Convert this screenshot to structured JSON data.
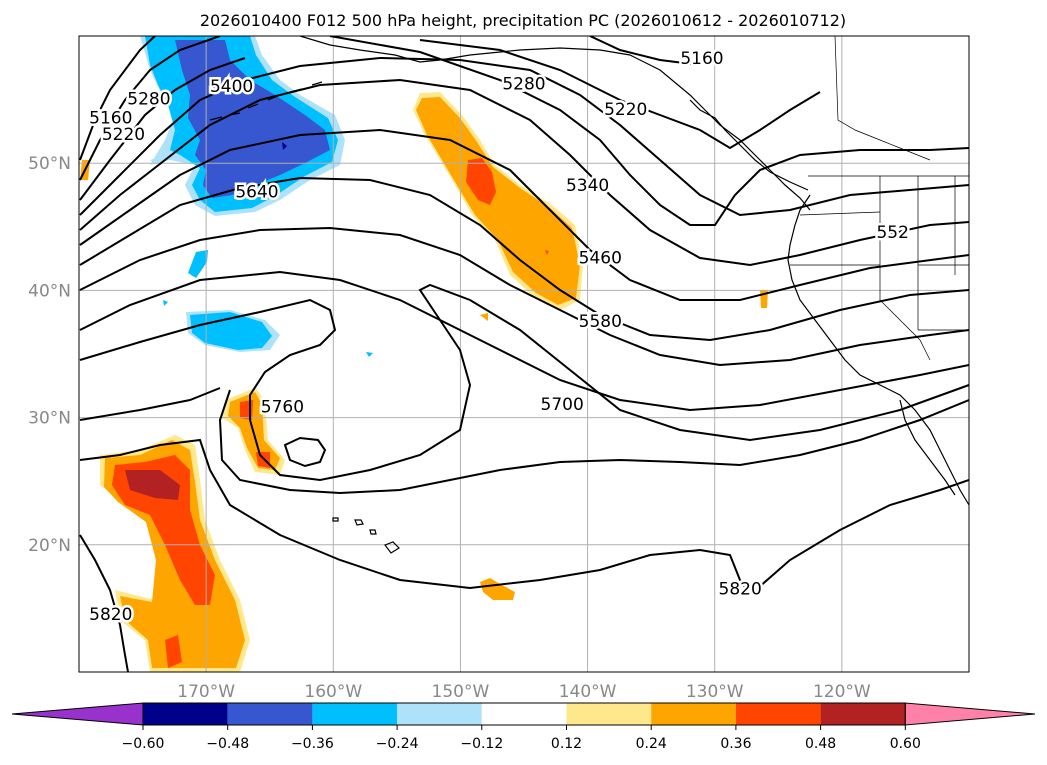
{
  "title": "2026010400 F012 500 hPa height, precipitation PC (2026010612 - 2026010712)",
  "map": {
    "lon_labels": [
      "170°W",
      "160°W",
      "150°W",
      "140°W",
      "130°W",
      "120°W"
    ],
    "lon_values": [
      -170,
      -160,
      -150,
      -140,
      -130,
      -120
    ],
    "lat_labels": [
      "50°N",
      "40°N",
      "30°N",
      "20°N"
    ],
    "lat_values": [
      50,
      40,
      30,
      20
    ],
    "label_color": "#888888",
    "grid": true
  },
  "height_contours": {
    "labels": [
      {
        "text": "5160",
        "lon": -177.5,
        "lat": 53.5
      },
      {
        "text": "5220",
        "lon": -176.5,
        "lat": 52.2
      },
      {
        "text": "5280",
        "lon": -174.5,
        "lat": 55.0
      },
      {
        "text": "5400",
        "lon": -168.0,
        "lat": 56.0
      },
      {
        "text": "5640",
        "lon": -166.0,
        "lat": 47.7
      },
      {
        "text": "5280",
        "lon": -145.0,
        "lat": 56.2
      },
      {
        "text": "5220",
        "lon": -137.0,
        "lat": 54.2
      },
      {
        "text": "5160",
        "lon": -131.0,
        "lat": 58.2
      },
      {
        "text": "5340",
        "lon": -140.0,
        "lat": 48.2
      },
      {
        "text": "5460",
        "lon": -139.0,
        "lat": 42.5
      },
      {
        "text": "5580",
        "lon": -139.0,
        "lat": 37.5
      },
      {
        "text": "5700",
        "lon": -142.0,
        "lat": 31.0
      },
      {
        "text": "5760",
        "lon": -164.0,
        "lat": 30.8
      },
      {
        "text": "5820",
        "lon": -177.5,
        "lat": 14.5
      },
      {
        "text": "5820",
        "lon": -128.0,
        "lat": 16.5
      },
      {
        "text": "552",
        "lon": -116.0,
        "lat": 44.5
      }
    ]
  },
  "precip_pc": {
    "units": "PC",
    "colorbar": {
      "ticks": [
        "−0.60",
        "−0.48",
        "−0.36",
        "−0.24",
        "−0.12",
        "0.12",
        "0.24",
        "0.36",
        "0.48",
        "0.60"
      ],
      "bins": [
        {
          "color": "#9932cc",
          "range": "< -0.60"
        },
        {
          "color": "#00008b",
          "range": "-0.60 to -0.48"
        },
        {
          "color": "#3657cf",
          "range": "-0.48 to -0.36"
        },
        {
          "color": "#00bfff",
          "range": "-0.36 to -0.24"
        },
        {
          "color": "#ade2fa",
          "range": "-0.24 to -0.12"
        },
        {
          "color": "#ffffff",
          "range": "-0.12 to 0.12"
        },
        {
          "color": "#ffe88c",
          "range": "0.12 to 0.24"
        },
        {
          "color": "#ffa500",
          "range": "0.24 to 0.36"
        },
        {
          "color": "#ff4500",
          "range": "0.36 to 0.48"
        },
        {
          "color": "#b22222",
          "range": "0.48 to 0.60"
        },
        {
          "color": "#ff80a8",
          "range": "> 0.60"
        }
      ]
    }
  }
}
